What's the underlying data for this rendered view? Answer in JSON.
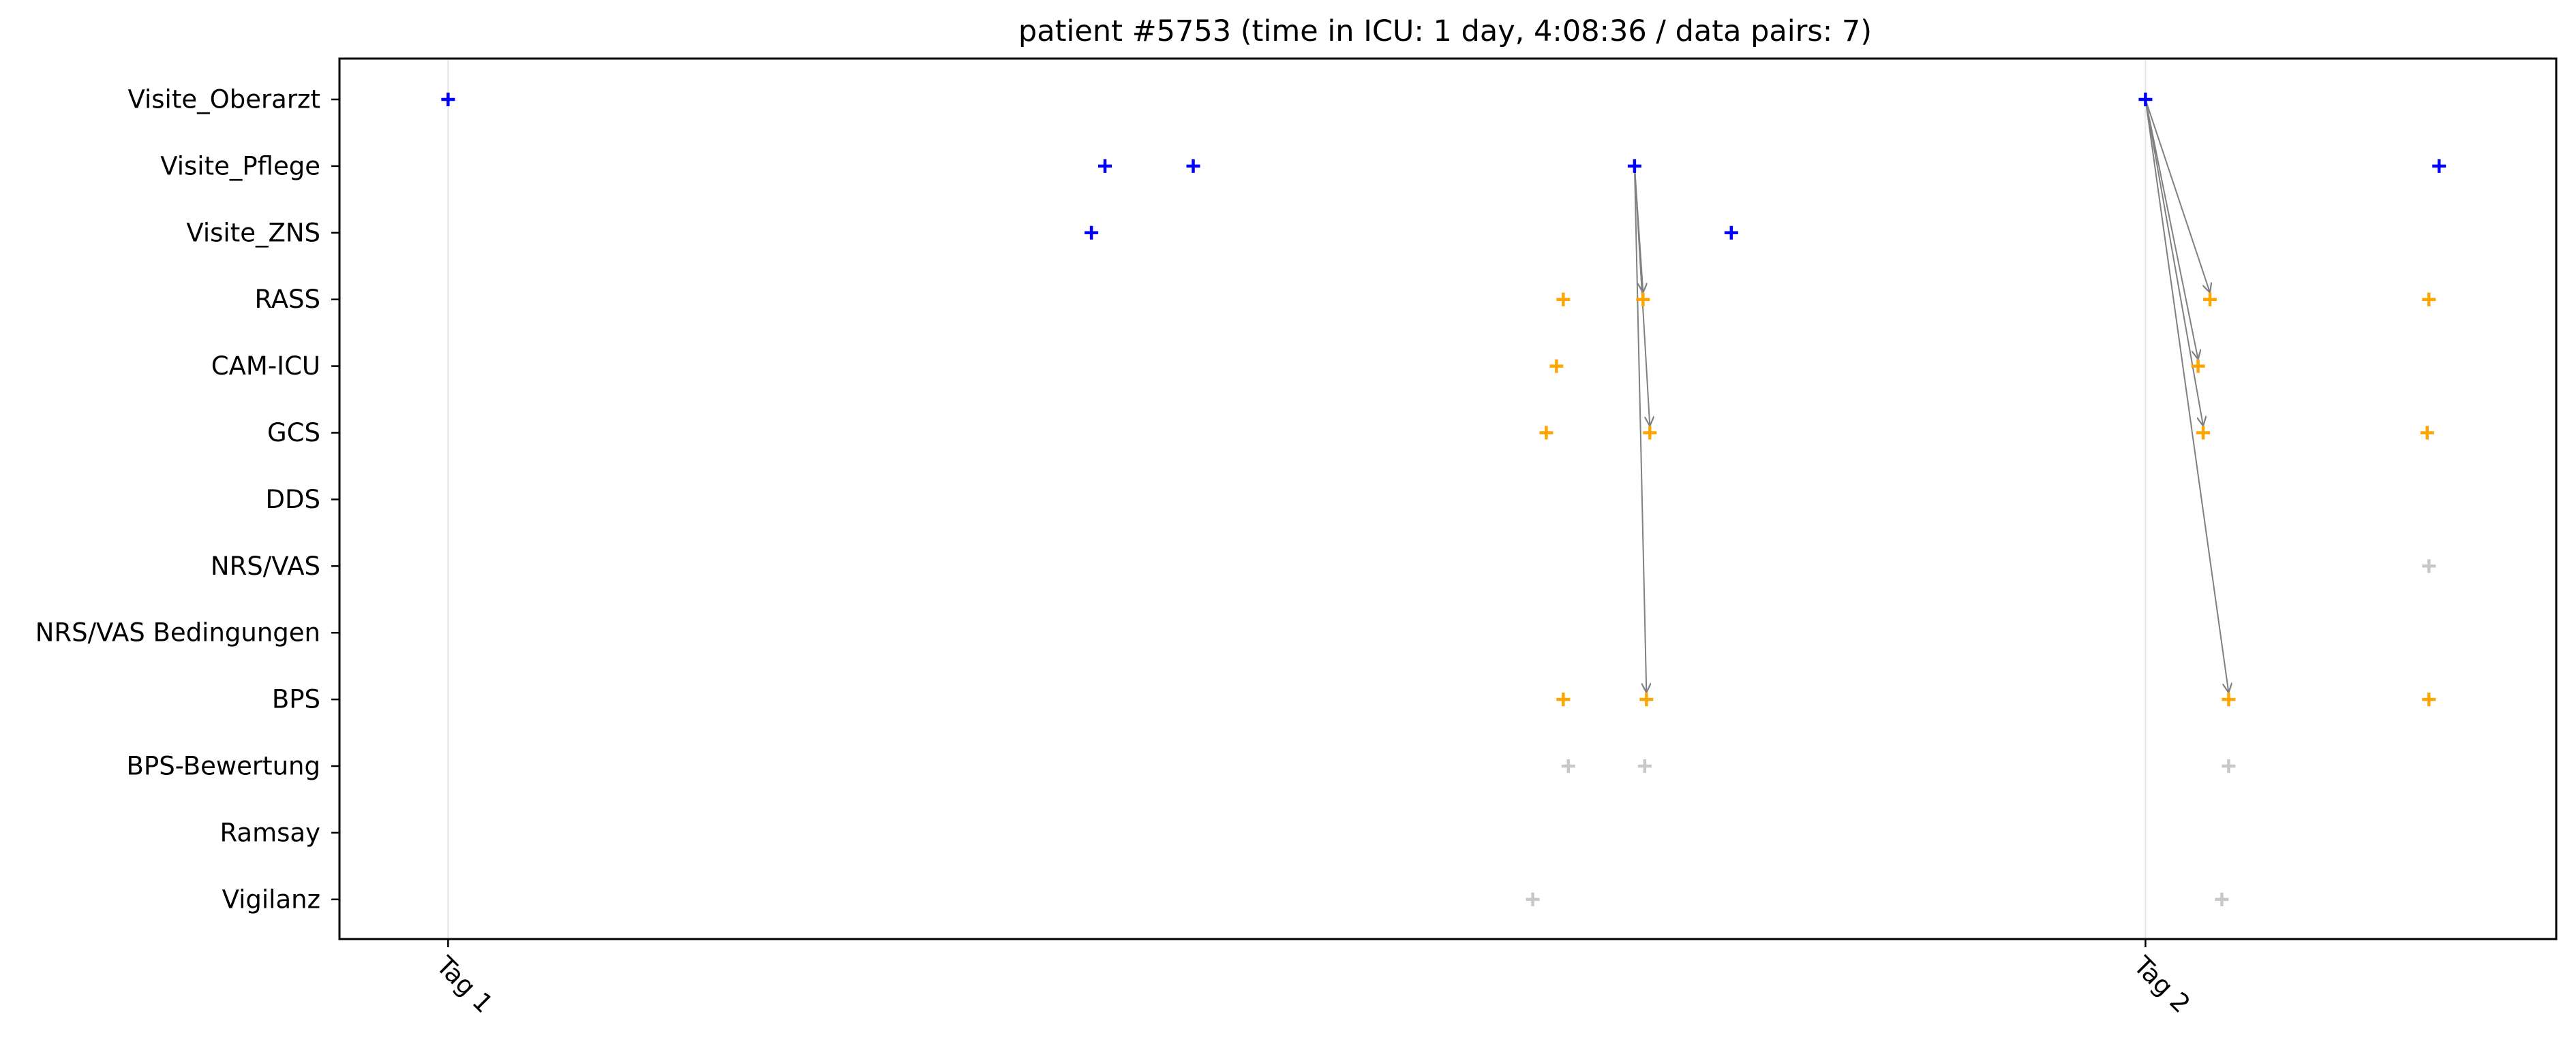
{
  "chart_data": {
    "type": "scatter",
    "title": "patient #5753 (time in ICU: 1 day, 4:08:36 / data pairs: 7)",
    "xlabel": "",
    "ylabel": "",
    "x_unit": "days",
    "xlim": [
      -0.064,
      1.242
    ],
    "x_ticks": [
      {
        "value": 0,
        "label": "Tag 1"
      },
      {
        "value": 1,
        "label": "Tag 2"
      }
    ],
    "y_categories": [
      "Visite_Oberarzt",
      "Visite_Pflege",
      "Visite_ZNS",
      "RASS",
      "CAM-ICU",
      "GCS",
      "DDS",
      "NRS/VAS",
      "NRS/VAS Bedingungen",
      "BPS",
      "BPS-Bewertung",
      "Ramsay",
      "Vigilanz"
    ],
    "grid": false,
    "legend": "none",
    "day_line_color": "#e6e6e6",
    "point_groups": [
      {
        "color": "#0000ff",
        "points": [
          {
            "x": 0.0,
            "cat": "Visite_Oberarzt"
          },
          {
            "x": 1.0,
            "cat": "Visite_Oberarzt"
          },
          {
            "x": 0.387,
            "cat": "Visite_Pflege"
          },
          {
            "x": 0.439,
            "cat": "Visite_Pflege"
          },
          {
            "x": 0.699,
            "cat": "Visite_Pflege"
          },
          {
            "x": 1.173,
            "cat": "Visite_Pflege"
          },
          {
            "x": 0.379,
            "cat": "Visite_ZNS"
          },
          {
            "x": 0.756,
            "cat": "Visite_ZNS"
          }
        ]
      },
      {
        "color": "#ffa500",
        "points": [
          {
            "x": 0.657,
            "cat": "RASS"
          },
          {
            "x": 0.704,
            "cat": "RASS"
          },
          {
            "x": 1.038,
            "cat": "RASS"
          },
          {
            "x": 1.167,
            "cat": "RASS"
          },
          {
            "x": 0.653,
            "cat": "CAM-ICU"
          },
          {
            "x": 1.031,
            "cat": "CAM-ICU"
          },
          {
            "x": 0.647,
            "cat": "GCS"
          },
          {
            "x": 0.708,
            "cat": "GCS"
          },
          {
            "x": 1.034,
            "cat": "GCS"
          },
          {
            "x": 1.166,
            "cat": "GCS"
          },
          {
            "x": 0.657,
            "cat": "BPS"
          },
          {
            "x": 0.706,
            "cat": "BPS"
          },
          {
            "x": 1.049,
            "cat": "BPS"
          },
          {
            "x": 1.167,
            "cat": "BPS"
          }
        ]
      },
      {
        "color": "#c8c8c8",
        "points": [
          {
            "x": 1.167,
            "cat": "NRS/VAS"
          },
          {
            "x": 0.66,
            "cat": "BPS-Bewertung"
          },
          {
            "x": 0.705,
            "cat": "BPS-Bewertung"
          },
          {
            "x": 1.049,
            "cat": "BPS-Bewertung"
          },
          {
            "x": 0.639,
            "cat": "Vigilanz"
          },
          {
            "x": 1.045,
            "cat": "Vigilanz"
          }
        ]
      }
    ],
    "pair_color": "#808080",
    "pairs": [
      {
        "from": {
          "x": 0.699,
          "cat": "Visite_Pflege"
        },
        "to": {
          "x": 0.704,
          "cat": "RASS"
        }
      },
      {
        "from": {
          "x": 0.699,
          "cat": "Visite_Pflege"
        },
        "to": {
          "x": 0.708,
          "cat": "GCS"
        }
      },
      {
        "from": {
          "x": 0.699,
          "cat": "Visite_Pflege"
        },
        "to": {
          "x": 0.706,
          "cat": "BPS"
        }
      },
      {
        "from": {
          "x": 1.0,
          "cat": "Visite_Oberarzt"
        },
        "to": {
          "x": 1.038,
          "cat": "RASS"
        }
      },
      {
        "from": {
          "x": 1.0,
          "cat": "Visite_Oberarzt"
        },
        "to": {
          "x": 1.031,
          "cat": "CAM-ICU"
        }
      },
      {
        "from": {
          "x": 1.0,
          "cat": "Visite_Oberarzt"
        },
        "to": {
          "x": 1.034,
          "cat": "GCS"
        }
      },
      {
        "from": {
          "x": 1.0,
          "cat": "Visite_Oberarzt"
        },
        "to": {
          "x": 1.049,
          "cat": "BPS"
        }
      }
    ]
  }
}
